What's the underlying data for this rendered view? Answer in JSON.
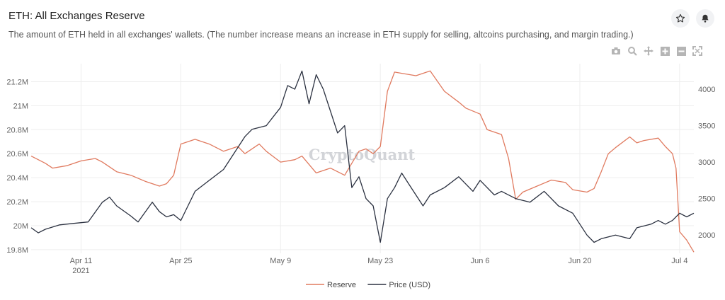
{
  "header": {
    "title": "ETH: All Exchanges Reserve",
    "subtitle": "The amount of ETH held in all exchanges' wallets. (The number increase means an increase in ETH supply for selling, altcoins purchasing, and margin trading.)",
    "star_icon": "star-icon",
    "bell_icon": "bell-icon"
  },
  "toolbar": {
    "icons": [
      "camera-icon",
      "zoom-icon",
      "pan-icon",
      "zoom-in-icon",
      "zoom-out-icon",
      "autoscale-icon"
    ]
  },
  "watermark": "CryptoQuant",
  "colors": {
    "reserve": "#e07a5f",
    "price": "#2b3140",
    "grid": "#eeeeee",
    "axis_text": "#666666"
  },
  "chart_data": {
    "type": "line",
    "x_range": [
      "2021-04-04",
      "2021-07-06"
    ],
    "x_ticks": [
      {
        "date": "2021-04-11",
        "label": "Apr 11",
        "sublabel": "2021"
      },
      {
        "date": "2021-04-25",
        "label": "Apr 25",
        "sublabel": ""
      },
      {
        "date": "2021-05-09",
        "label": "May 9",
        "sublabel": ""
      },
      {
        "date": "2021-05-23",
        "label": "May 23",
        "sublabel": ""
      },
      {
        "date": "2021-06-06",
        "label": "Jun 6",
        "sublabel": ""
      },
      {
        "date": "2021-06-20",
        "label": "Jun 20",
        "sublabel": ""
      },
      {
        "date": "2021-07-04",
        "label": "Jul 4",
        "sublabel": ""
      }
    ],
    "y_left": {
      "range": [
        19.77,
        21.35
      ],
      "ticks": [
        {
          "value": 19.8,
          "label": "19.8M"
        },
        {
          "value": 20.0,
          "label": "20M"
        },
        {
          "value": 20.2,
          "label": "20.2M"
        },
        {
          "value": 20.4,
          "label": "20.4M"
        },
        {
          "value": 20.6,
          "label": "20.6M"
        },
        {
          "value": 20.8,
          "label": "20.8M"
        },
        {
          "value": 21.0,
          "label": "21M"
        },
        {
          "value": 21.2,
          "label": "21.2M"
        }
      ]
    },
    "y_right": {
      "range": [
        1750,
        4350
      ],
      "ticks": [
        {
          "value": 2000,
          "label": "2000"
        },
        {
          "value": 2500,
          "label": "2500"
        },
        {
          "value": 3000,
          "label": "3000"
        },
        {
          "value": 3500,
          "label": "3500"
        },
        {
          "value": 4000,
          "label": "4000"
        }
      ]
    },
    "grid": true,
    "legend_position": "bottom-center",
    "series": [
      {
        "name": "Reserve",
        "axis": "left",
        "points": [
          [
            "2021-04-04",
            20.58
          ],
          [
            "2021-04-06",
            20.52
          ],
          [
            "2021-04-07",
            20.48
          ],
          [
            "2021-04-09",
            20.5
          ],
          [
            "2021-04-11",
            20.54
          ],
          [
            "2021-04-13",
            20.56
          ],
          [
            "2021-04-14",
            20.53
          ],
          [
            "2021-04-16",
            20.45
          ],
          [
            "2021-04-18",
            20.42
          ],
          [
            "2021-04-20",
            20.37
          ],
          [
            "2021-04-22",
            20.33
          ],
          [
            "2021-04-23",
            20.35
          ],
          [
            "2021-04-24",
            20.42
          ],
          [
            "2021-04-25",
            20.68
          ],
          [
            "2021-04-27",
            20.72
          ],
          [
            "2021-04-29",
            20.68
          ],
          [
            "2021-05-01",
            20.62
          ],
          [
            "2021-05-03",
            20.66
          ],
          [
            "2021-05-04",
            20.6
          ],
          [
            "2021-05-06",
            20.68
          ],
          [
            "2021-05-07",
            20.62
          ],
          [
            "2021-05-09",
            20.53
          ],
          [
            "2021-05-11",
            20.55
          ],
          [
            "2021-05-12",
            20.58
          ],
          [
            "2021-05-14",
            20.44
          ],
          [
            "2021-05-16",
            20.48
          ],
          [
            "2021-05-18",
            20.42
          ],
          [
            "2021-05-20",
            20.62
          ],
          [
            "2021-05-21",
            20.64
          ],
          [
            "2021-05-22",
            20.6
          ],
          [
            "2021-05-23",
            20.66
          ],
          [
            "2021-05-24",
            21.12
          ],
          [
            "2021-05-25",
            21.28
          ],
          [
            "2021-05-26",
            21.27
          ],
          [
            "2021-05-28",
            21.25
          ],
          [
            "2021-05-30",
            21.29
          ],
          [
            "2021-06-01",
            21.12
          ],
          [
            "2021-06-03",
            21.03
          ],
          [
            "2021-06-04",
            20.98
          ],
          [
            "2021-06-06",
            20.93
          ],
          [
            "2021-06-07",
            20.8
          ],
          [
            "2021-06-09",
            20.76
          ],
          [
            "2021-06-10",
            20.56
          ],
          [
            "2021-06-11",
            20.22
          ],
          [
            "2021-06-12",
            20.28
          ],
          [
            "2021-06-14",
            20.33
          ],
          [
            "2021-06-16",
            20.38
          ],
          [
            "2021-06-18",
            20.36
          ],
          [
            "2021-06-19",
            20.3
          ],
          [
            "2021-06-21",
            20.28
          ],
          [
            "2021-06-22",
            20.31
          ],
          [
            "2021-06-23",
            20.45
          ],
          [
            "2021-06-24",
            20.6
          ],
          [
            "2021-06-25",
            20.65
          ],
          [
            "2021-06-27",
            20.74
          ],
          [
            "2021-06-28",
            20.69
          ],
          [
            "2021-06-29",
            20.71
          ],
          [
            "2021-07-01",
            20.73
          ],
          [
            "2021-07-02",
            20.66
          ],
          [
            "2021-07-03",
            20.6
          ],
          [
            "2021-07-03T12",
            20.48
          ],
          [
            "2021-07-04",
            19.95
          ],
          [
            "2021-07-05",
            19.88
          ],
          [
            "2021-07-06",
            19.78
          ]
        ]
      },
      {
        "name": "Price (USD)",
        "axis": "right",
        "points": [
          [
            "2021-04-04",
            2100
          ],
          [
            "2021-04-05",
            2030
          ],
          [
            "2021-04-06",
            2080
          ],
          [
            "2021-04-08",
            2140
          ],
          [
            "2021-04-10",
            2160
          ],
          [
            "2021-04-12",
            2180
          ],
          [
            "2021-04-14",
            2450
          ],
          [
            "2021-04-15",
            2520
          ],
          [
            "2021-04-16",
            2400
          ],
          [
            "2021-04-18",
            2260
          ],
          [
            "2021-04-19",
            2180
          ],
          [
            "2021-04-21",
            2450
          ],
          [
            "2021-04-22",
            2320
          ],
          [
            "2021-04-23",
            2250
          ],
          [
            "2021-04-24",
            2280
          ],
          [
            "2021-04-25",
            2200
          ],
          [
            "2021-04-27",
            2600
          ],
          [
            "2021-04-29",
            2750
          ],
          [
            "2021-05-01",
            2900
          ],
          [
            "2021-05-03",
            3200
          ],
          [
            "2021-05-04",
            3350
          ],
          [
            "2021-05-05",
            3450
          ],
          [
            "2021-05-07",
            3500
          ],
          [
            "2021-05-09",
            3750
          ],
          [
            "2021-05-10",
            4050
          ],
          [
            "2021-05-11",
            4000
          ],
          [
            "2021-05-12",
            4250
          ],
          [
            "2021-05-13",
            3800
          ],
          [
            "2021-05-14",
            4200
          ],
          [
            "2021-05-15",
            4000
          ],
          [
            "2021-05-16",
            3700
          ],
          [
            "2021-05-17",
            3400
          ],
          [
            "2021-05-18",
            3500
          ],
          [
            "2021-05-19",
            2650
          ],
          [
            "2021-05-20",
            2800
          ],
          [
            "2021-05-21",
            2500
          ],
          [
            "2021-05-22",
            2400
          ],
          [
            "2021-05-23",
            1900
          ],
          [
            "2021-05-24",
            2500
          ],
          [
            "2021-05-25",
            2650
          ],
          [
            "2021-05-26",
            2850
          ],
          [
            "2021-05-27",
            2700
          ],
          [
            "2021-05-29",
            2400
          ],
          [
            "2021-05-30",
            2550
          ],
          [
            "2021-06-01",
            2650
          ],
          [
            "2021-06-03",
            2800
          ],
          [
            "2021-06-04",
            2700
          ],
          [
            "2021-06-05",
            2600
          ],
          [
            "2021-06-06",
            2750
          ],
          [
            "2021-06-08",
            2550
          ],
          [
            "2021-06-09",
            2600
          ],
          [
            "2021-06-11",
            2500
          ],
          [
            "2021-06-13",
            2450
          ],
          [
            "2021-06-15",
            2600
          ],
          [
            "2021-06-17",
            2400
          ],
          [
            "2021-06-19",
            2300
          ],
          [
            "2021-06-21",
            2000
          ],
          [
            "2021-06-22",
            1900
          ],
          [
            "2021-06-23",
            1950
          ],
          [
            "2021-06-25",
            2000
          ],
          [
            "2021-06-27",
            1950
          ],
          [
            "2021-06-28",
            2100
          ],
          [
            "2021-06-30",
            2150
          ],
          [
            "2021-07-01",
            2200
          ],
          [
            "2021-07-02",
            2150
          ],
          [
            "2021-07-03",
            2200
          ],
          [
            "2021-07-04",
            2300
          ],
          [
            "2021-07-05",
            2250
          ],
          [
            "2021-07-06",
            2300
          ]
        ]
      }
    ]
  }
}
